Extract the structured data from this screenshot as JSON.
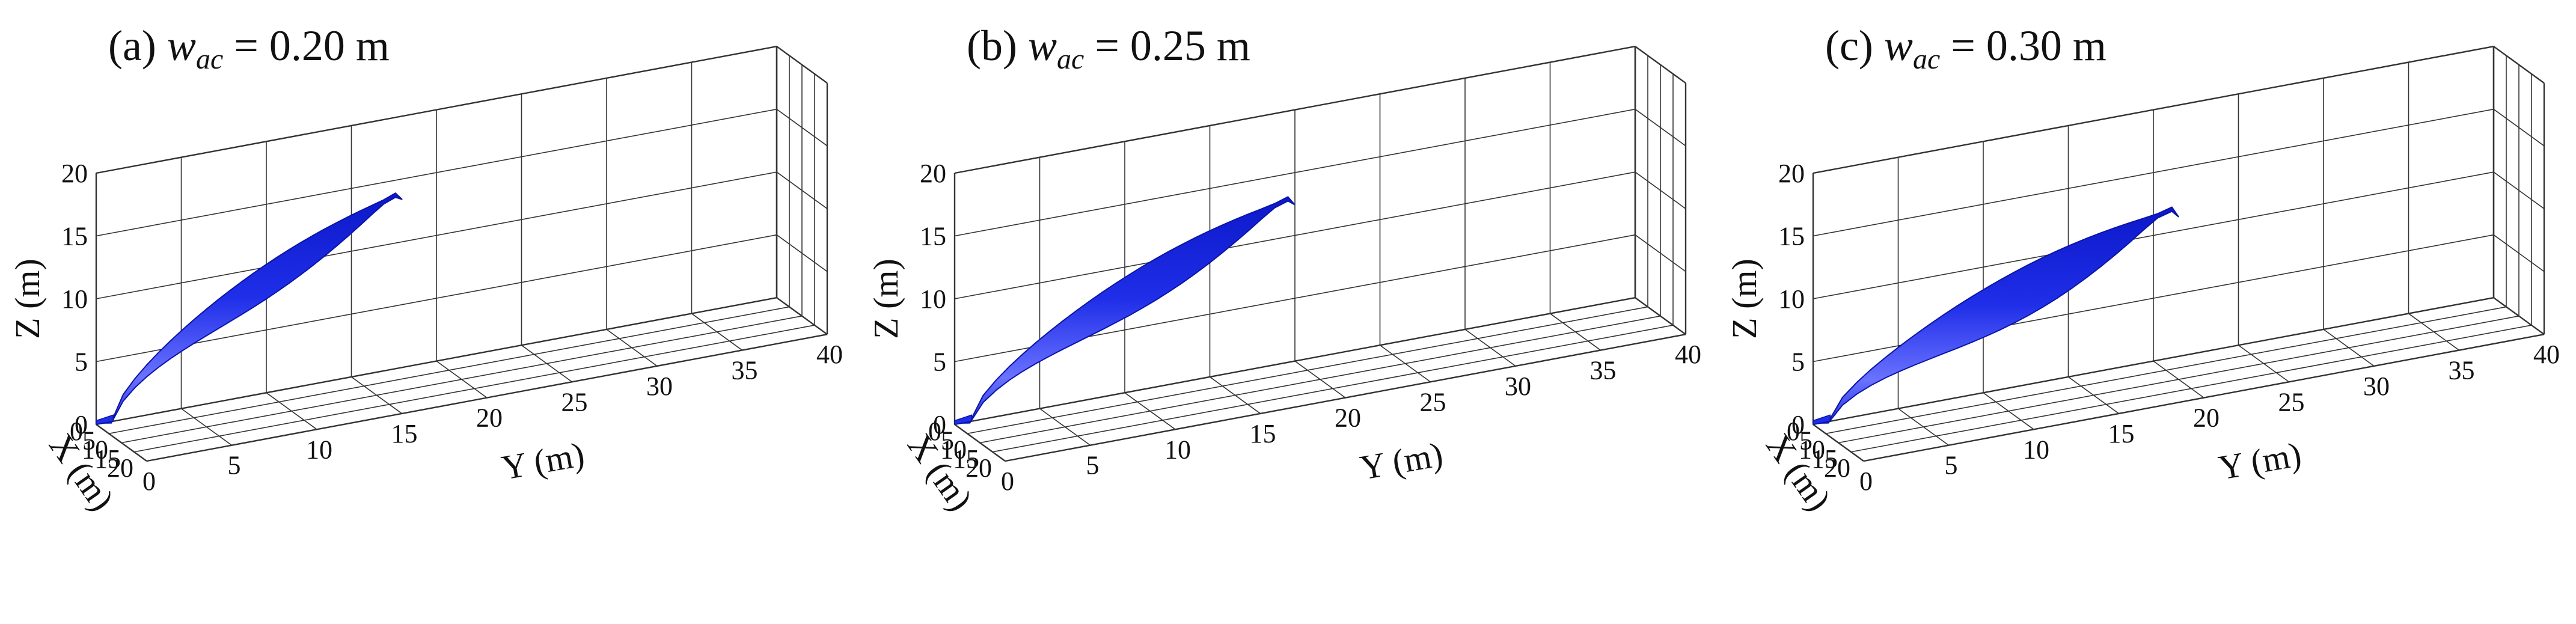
{
  "chart_data": [
    {
      "type": "3d-surface",
      "panel_label": "(a)",
      "title_var": "w",
      "title_sub": "ac",
      "title_value": "= 0.20 m",
      "xlabel": "X (m)",
      "ylabel": "Y (m)",
      "zlabel": "Z (m)",
      "xticks": [
        "0",
        "5",
        "10",
        "15",
        "20"
      ],
      "yticks": [
        "0",
        "5",
        "10",
        "15",
        "20",
        "25",
        "30",
        "35",
        "40"
      ],
      "zticks": [
        "0",
        "5",
        "10",
        "15",
        "20"
      ],
      "xlim": [
        0,
        20
      ],
      "ylim": [
        0,
        40
      ],
      "zlim": [
        0,
        20
      ],
      "grid": true,
      "plume_color": "#1f2ee8",
      "plume": {
        "tip_y": 17.5,
        "tip_z": 14.0,
        "max_thickness": 2.6
      }
    },
    {
      "type": "3d-surface",
      "panel_label": "(b)",
      "title_var": "w",
      "title_sub": "ac",
      "title_value": "= 0.25 m",
      "xlabel": "X (m)",
      "ylabel": "Y (m)",
      "zlabel": "Z (m)",
      "xticks": [
        "0",
        "5",
        "10",
        "15",
        "20"
      ],
      "yticks": [
        "0",
        "5",
        "10",
        "15",
        "20",
        "25",
        "30",
        "35",
        "40"
      ],
      "zticks": [
        "0",
        "5",
        "10",
        "15",
        "20"
      ],
      "xlim": [
        0,
        20
      ],
      "ylim": [
        0,
        40
      ],
      "zlim": [
        0,
        20
      ],
      "grid": true,
      "plume_color": "#1f2ee8",
      "plume": {
        "tip_y": 19.5,
        "tip_z": 13.2,
        "max_thickness": 3.2
      }
    },
    {
      "type": "3d-surface",
      "panel_label": "(c)",
      "title_var": "w",
      "title_sub": "ac",
      "title_value": "= 0.30 m",
      "xlabel": "X (m)",
      "ylabel": "Y (m)",
      "zlabel": "Z (m)",
      "xticks": [
        "0",
        "5",
        "10",
        "15",
        "20"
      ],
      "yticks": [
        "0",
        "5",
        "10",
        "15",
        "20",
        "25",
        "30",
        "35",
        "40"
      ],
      "zticks": [
        "0",
        "5",
        "10",
        "15",
        "20"
      ],
      "xlim": [
        0,
        20
      ],
      "ylim": [
        0,
        40
      ],
      "zlim": [
        0,
        20
      ],
      "grid": true,
      "plume_color": "#1f2ee8",
      "plume": {
        "tip_y": 21.0,
        "tip_z": 12.0,
        "max_thickness": 4.0
      }
    }
  ]
}
